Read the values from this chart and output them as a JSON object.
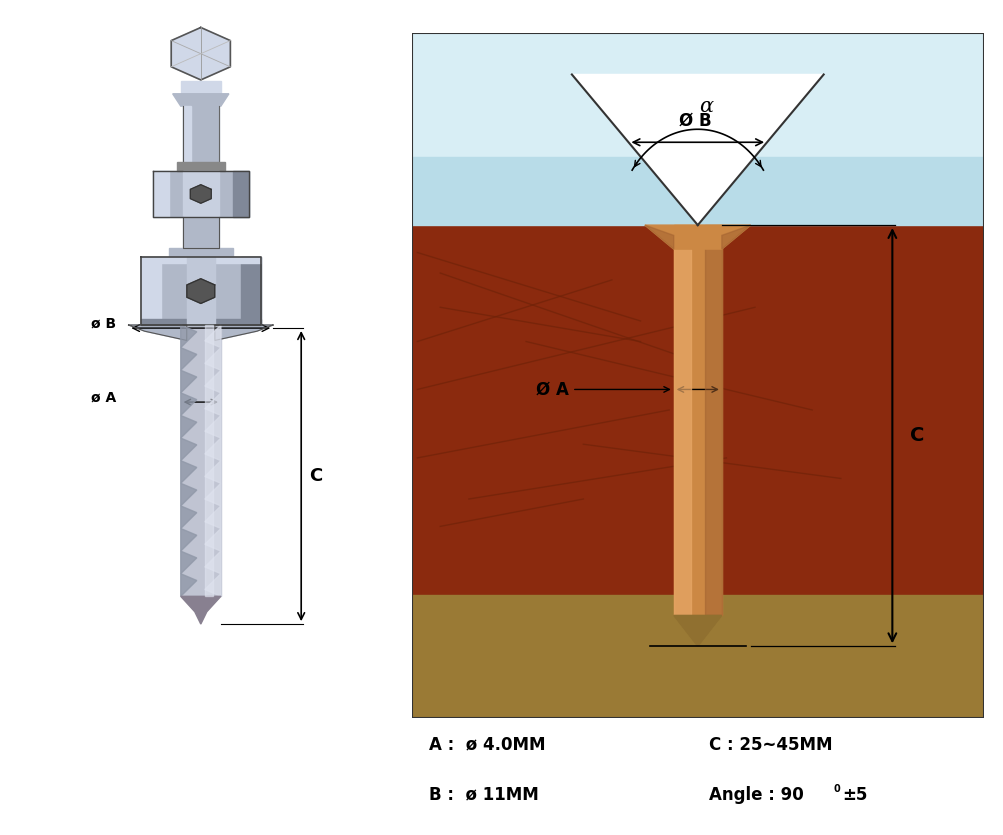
{
  "fig_width": 10.04,
  "fig_height": 8.35,
  "bg_color": "#ffffff",
  "box_bg_sky": "#b8dce8",
  "box_bg_sky_top": "#d8eef5",
  "box_bg_wood": "#8b2a0e",
  "box_bg_ground": "#9a7a35",
  "drill_color_main": "#cc8844",
  "drill_color_light": "#e8a868",
  "drill_color_shadow": "#a06030",
  "drill_tip_color": "#907030",
  "wood_grain_color": "#6e2208",
  "label_A": "Ø A",
  "label_B": "Ø B",
  "label_C": "C",
  "label_alpha": "α",
  "spec_A": "A :  ø 4.0MM",
  "spec_B": "B :  ø 11MM",
  "spec_C": "C : 25~45MM",
  "spec_angle": "Angle : 90",
  "spec_angle_sup": "0",
  "spec_angle_suffix": "±5",
  "left_label_B": "ø B",
  "left_label_A": "ø A",
  "left_label_C": "C",
  "shank_color": "#b8c0d0",
  "collar_color": "#a0a8b8",
  "collar_dark": "#808898",
  "metal_light": "#d0d8e8",
  "metal_mid": "#b0b8c8",
  "metal_dark": "#707888"
}
